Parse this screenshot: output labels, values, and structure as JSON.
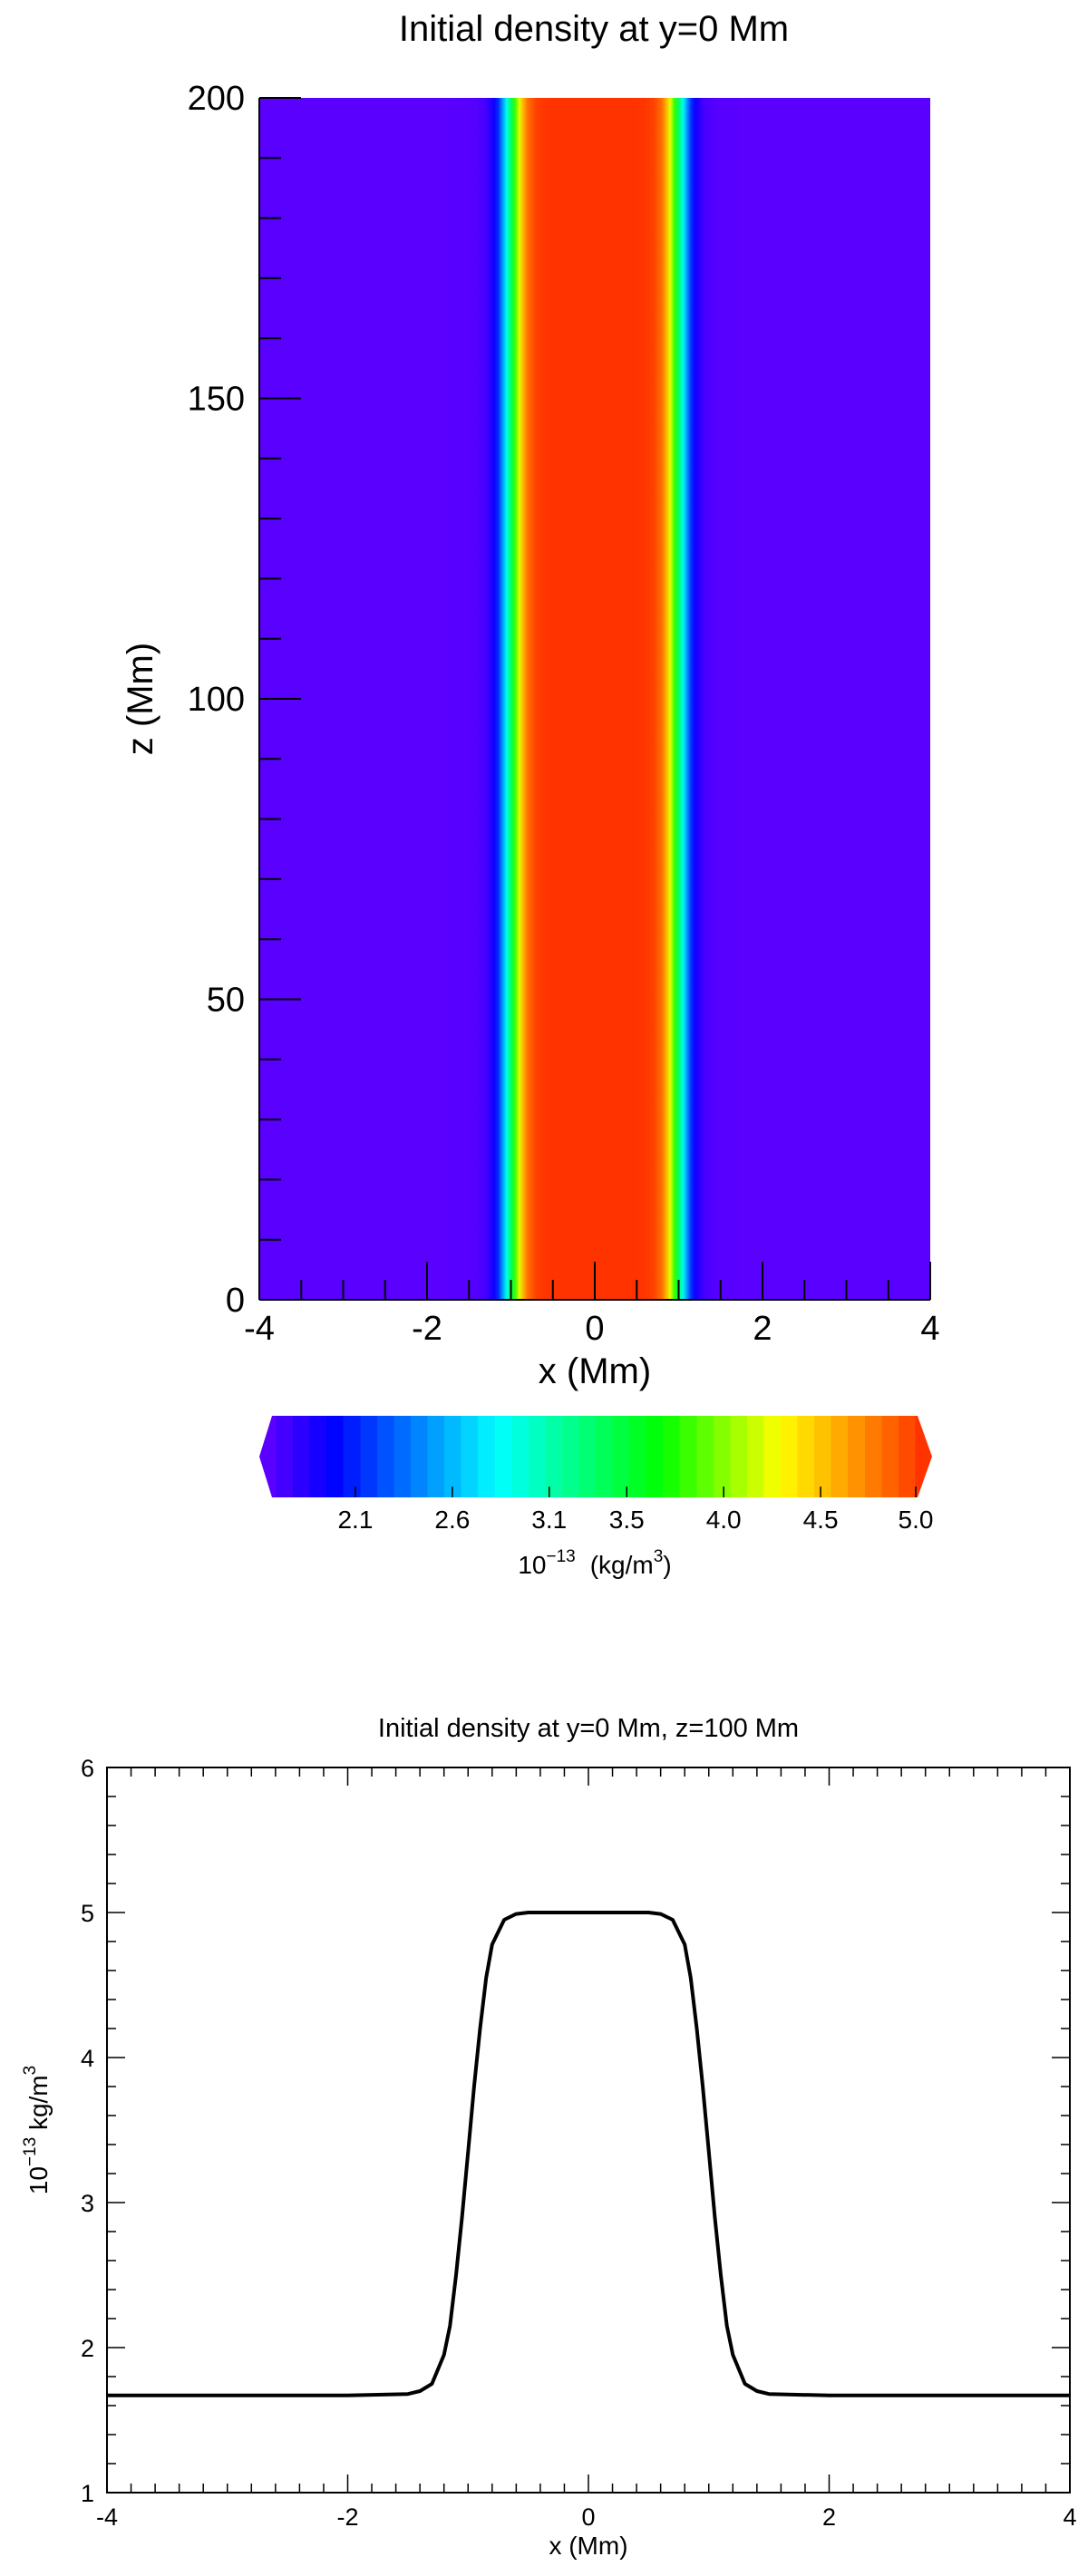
{
  "chart_data": [
    {
      "type": "heatmap",
      "title": "Initial density at y=0 Mm",
      "xlabel": "x (Mm)",
      "ylabel": "z (Mm)",
      "xlim": [
        -4,
        4
      ],
      "ylim": [
        0,
        200
      ],
      "x_ticks": [
        "-4",
        "-2",
        "0",
        "2",
        "4"
      ],
      "y_ticks": [
        "0",
        "50",
        "100",
        "150",
        "200"
      ],
      "x_tick_values": [
        -4,
        -2,
        0,
        2,
        4
      ],
      "y_tick_values": [
        0,
        50,
        100,
        150,
        200
      ],
      "description_values": {
        "background_density": 1.67,
        "core_density": 5.0,
        "core_half_width": 1.0
      },
      "colorbar": {
        "min": 1.67,
        "max": 5.0,
        "ticks": [
          "2.1",
          "2.6",
          "3.1",
          "3.5",
          "4.0",
          "4.5",
          "5.0"
        ],
        "tick_values": [
          2.1,
          2.6,
          3.1,
          3.5,
          4.0,
          4.5,
          5.0
        ],
        "label_base": "10",
        "label_exp": "−13",
        "label_unit": "(kg/m",
        "label_unit_exp": "3",
        "label_close": ")",
        "colors": [
          "#5a00ff",
          "#0000ff",
          "#00ffff",
          "#00ff00",
          "#ffff00",
          "#ff3300"
        ],
        "color_stops": [
          0.0,
          0.1,
          0.35,
          0.6,
          0.78,
          1.0
        ]
      }
    },
    {
      "type": "line",
      "title": "Initial density at y=0 Mm, z=100 Mm",
      "xlabel": "x (Mm)",
      "ylabel_base": "10",
      "ylabel_exp": "−13",
      "ylabel_unit": " kg/m",
      "ylabel_unit_exp": "3",
      "xlim": [
        -4,
        4
      ],
      "ylim": [
        1,
        6
      ],
      "x_ticks": [
        "-4",
        "-2",
        "0",
        "2",
        "4"
      ],
      "y_ticks": [
        "1",
        "2",
        "3",
        "4",
        "5",
        "6"
      ],
      "x_tick_values": [
        -4,
        -2,
        0,
        2,
        4
      ],
      "y_tick_values": [
        1,
        2,
        3,
        4,
        5,
        6
      ],
      "series": [
        {
          "x": [
            -4.0,
            -3.0,
            -2.0,
            -1.5,
            -1.4,
            -1.3,
            -1.2,
            -1.15,
            -1.1,
            -1.05,
            -1.0,
            -0.95,
            -0.9,
            -0.85,
            -0.8,
            -0.7,
            -0.6,
            -0.5,
            -0.3,
            0.0,
            0.3,
            0.5,
            0.6,
            0.7,
            0.8,
            0.85,
            0.9,
            0.95,
            1.0,
            1.05,
            1.1,
            1.15,
            1.2,
            1.3,
            1.4,
            1.5,
            2.0,
            3.0,
            4.0
          ],
          "y": [
            1.67,
            1.67,
            1.67,
            1.68,
            1.7,
            1.75,
            1.95,
            2.15,
            2.5,
            2.9,
            3.35,
            3.8,
            4.2,
            4.55,
            4.78,
            4.95,
            4.99,
            5.0,
            5.0,
            5.0,
            5.0,
            5.0,
            4.99,
            4.95,
            4.78,
            4.55,
            4.2,
            3.8,
            3.35,
            2.9,
            2.5,
            2.15,
            1.95,
            1.75,
            1.7,
            1.68,
            1.67,
            1.67,
            1.67
          ]
        }
      ]
    }
  ]
}
